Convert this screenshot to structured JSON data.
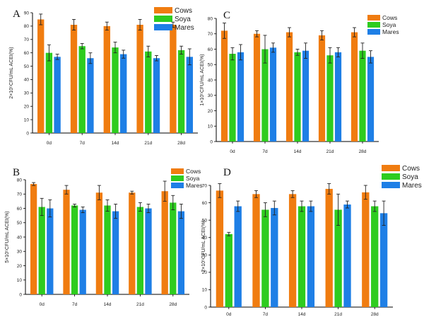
{
  "legend_labels": [
    "Cows",
    "Soya",
    "Mares"
  ],
  "colors": {
    "cows": "#F07C10",
    "soya": "#2ECC1F",
    "mares": "#1E7FE6"
  },
  "chart_data": [
    {
      "type": "bar",
      "panel": "A",
      "ylabel": "2×10⁵CFU/mL ACEI(%)",
      "categories": [
        "0d",
        "7d",
        "14d",
        "21d",
        "28d"
      ],
      "ylim": [
        0,
        90
      ],
      "yticks": [
        0,
        10,
        20,
        30,
        40,
        50,
        60,
        70,
        80,
        90
      ],
      "series": [
        {
          "name": "Cows",
          "values": [
            85,
            81,
            80,
            81,
            81
          ],
          "errors": [
            4,
            4,
            3,
            4,
            2
          ]
        },
        {
          "name": "Soya",
          "values": [
            60,
            65,
            64,
            61,
            62
          ],
          "errors": [
            6,
            2,
            4,
            4,
            3
          ]
        },
        {
          "name": "Mares",
          "values": [
            57,
            56,
            59,
            56,
            57
          ],
          "errors": [
            2,
            4,
            3,
            2,
            6
          ]
        }
      ],
      "legend_position": "top-right"
    },
    {
      "type": "bar",
      "panel": "C",
      "ylabel": "1×10⁵CFU/mL ACEI(%)",
      "categories": [
        "0d",
        "7d",
        "14d",
        "21d",
        "28d"
      ],
      "ylim": [
        0,
        80
      ],
      "yticks": [
        0,
        10,
        20,
        30,
        40,
        50,
        60,
        70,
        80
      ],
      "series": [
        {
          "name": "Cows",
          "values": [
            72,
            70,
            71,
            69,
            71
          ],
          "errors": [
            5,
            2,
            3,
            3,
            3
          ]
        },
        {
          "name": "Soya",
          "values": [
            57,
            60,
            58,
            56,
            59
          ],
          "errors": [
            4,
            9,
            2,
            5,
            5
          ]
        },
        {
          "name": "Mares",
          "values": [
            58,
            61,
            59,
            58,
            55
          ],
          "errors": [
            5,
            3,
            5,
            3,
            4
          ]
        }
      ],
      "legend_position": "top-right"
    },
    {
      "type": "bar",
      "panel": "B",
      "ylabel": "5×10⁵CFU/mL ACEI(%)",
      "categories": [
        "0d",
        "7d",
        "14d",
        "21d",
        "28d"
      ],
      "ylim": [
        0,
        80
      ],
      "yticks": [
        0,
        10,
        20,
        30,
        40,
        50,
        60,
        70,
        80
      ],
      "series": [
        {
          "name": "Cows",
          "values": [
            77,
            73,
            71,
            71,
            72
          ],
          "errors": [
            1,
            3,
            5,
            1,
            7
          ]
        },
        {
          "name": "Soya",
          "values": [
            61,
            62,
            62,
            61,
            64
          ],
          "errors": [
            6,
            1,
            4,
            3,
            5
          ]
        },
        {
          "name": "Mares",
          "values": [
            60,
            59,
            58,
            60,
            58
          ],
          "errors": [
            6,
            2,
            5,
            3,
            5
          ]
        }
      ],
      "legend_position": "top-right"
    },
    {
      "type": "bar",
      "panel": "D",
      "ylabel": "2×10⁵CFU/mL ACEI(%)",
      "categories": [
        "0d",
        "7d",
        "14d",
        "21d",
        "28d"
      ],
      "ylim": [
        0,
        70
      ],
      "yticks": [
        0,
        10,
        20,
        30,
        40,
        50,
        60,
        70
      ],
      "series": [
        {
          "name": "Cows",
          "values": [
            67,
            65,
            65,
            68,
            66
          ],
          "errors": [
            4,
            2,
            2,
            3,
            4
          ]
        },
        {
          "name": "Soya",
          "values": [
            42,
            56,
            58,
            56,
            58
          ],
          "errors": [
            1,
            4,
            3,
            9,
            3
          ]
        },
        {
          "name": "Mares",
          "values": [
            58,
            57,
            58,
            59,
            54
          ],
          "errors": [
            3,
            4,
            3,
            2,
            7
          ]
        }
      ],
      "legend_position": "top-right"
    }
  ]
}
